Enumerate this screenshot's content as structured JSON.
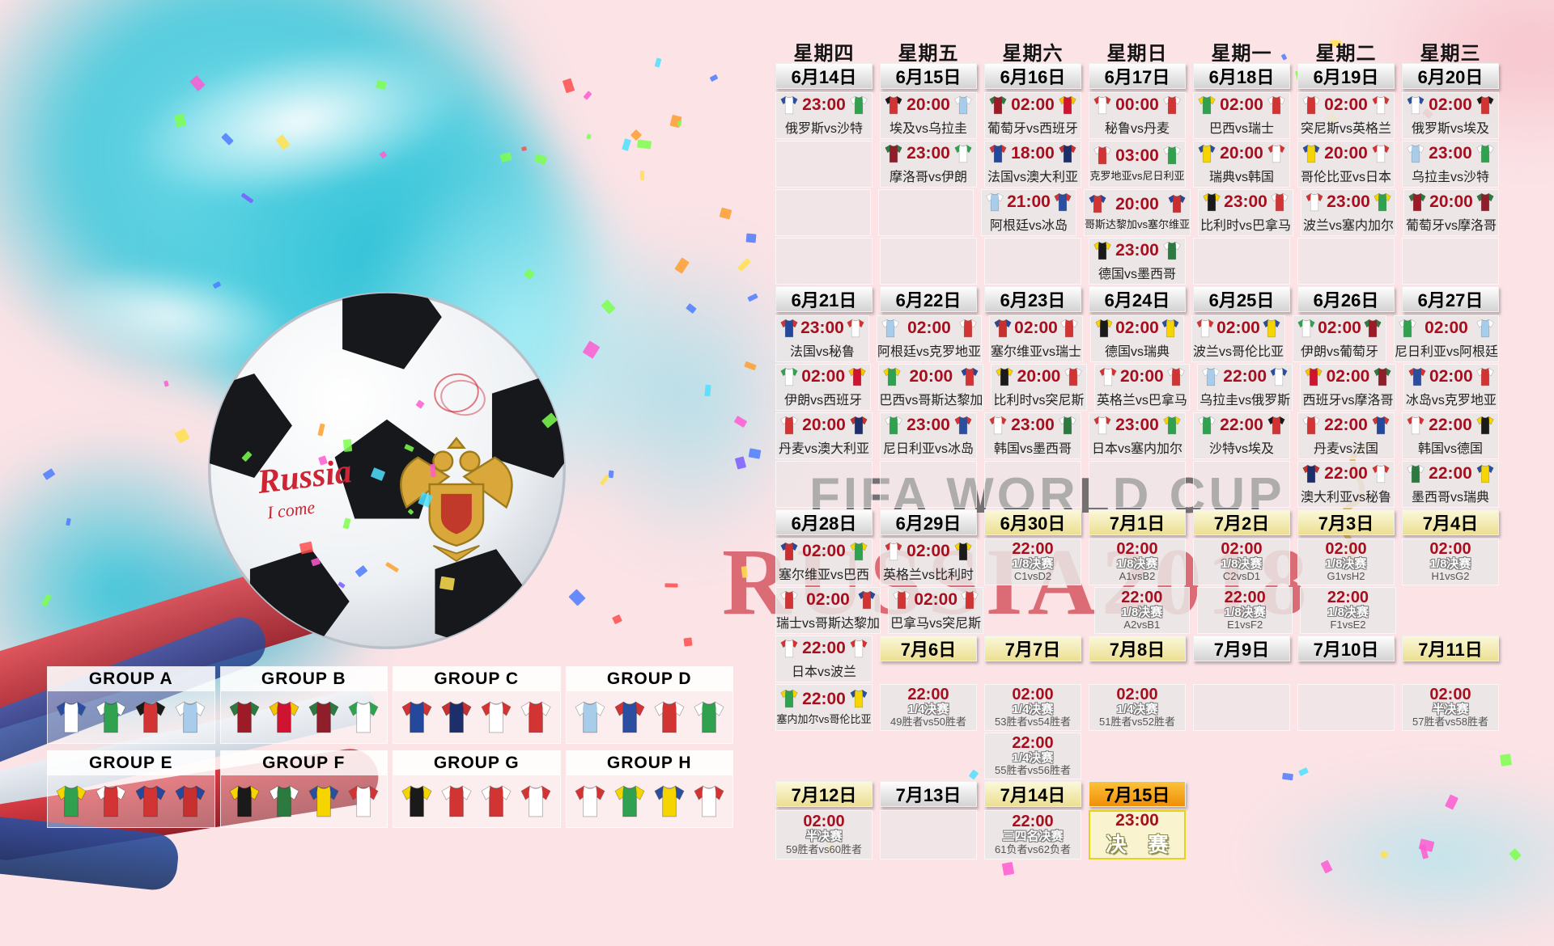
{
  "watermarks": {
    "fifa": "FIFA WORLD CUP",
    "russia": "RUSSIA2018"
  },
  "handwriting": {
    "line1": "Russia",
    "line2": "I come"
  },
  "icons": {
    "ball": "soccer-ball",
    "emblem": "russia-eagle-emblem",
    "jersey": "team-jersey-icon"
  },
  "colors": {
    "background_pink": "#fbe3e6",
    "splash_cyan": "#3cc6da",
    "time_red": "#a80f1e",
    "date_gray_top": "#fefefe",
    "date_yellow": "#ecdf92",
    "date_orange": "#ef8f06",
    "final_border": "#e6d318",
    "watermark_red": "#c61c2c"
  },
  "teams": {
    "俄罗斯": [
      "#ffffff",
      "#2a4fa0"
    ],
    "沙特": [
      "#2fa14f",
      "#ffffff"
    ],
    "埃及": [
      "#d23333",
      "#1a1a1a"
    ],
    "乌拉圭": [
      "#a8cdea",
      "#ffffff"
    ],
    "葡萄牙": [
      "#9c1b26",
      "#2c7a3f"
    ],
    "西班牙": [
      "#cf1330",
      "#f5c400"
    ],
    "秘鲁": [
      "#ffffff",
      "#d23333"
    ],
    "丹麦": [
      "#d23333",
      "#ffffff"
    ],
    "巴西": [
      "#2fa14f",
      "#f5d400"
    ],
    "瑞士": [
      "#d23333",
      "#ffffff"
    ],
    "突尼斯": [
      "#d23333",
      "#ffffff"
    ],
    "英格兰": [
      "#ffffff",
      "#d23333"
    ],
    "摩洛哥": [
      "#8e1f2a",
      "#2c7a3f"
    ],
    "伊朗": [
      "#ffffff",
      "#2fa14f"
    ],
    "法国": [
      "#24489c",
      "#d23333"
    ],
    "澳大利亚": [
      "#1d2f6b",
      "#c7302f"
    ],
    "克罗地亚": [
      "#d23333",
      "#ffffff"
    ],
    "尼日利亚": [
      "#2fa14f",
      "#ffffff"
    ],
    "瑞典": [
      "#f5d400",
      "#2a4fa0"
    ],
    "韩国": [
      "#ffffff",
      "#d23333"
    ],
    "哥伦比亚": [
      "#f5d400",
      "#2a4fa0"
    ],
    "日本": [
      "#ffffff",
      "#d23333"
    ],
    "阿根廷": [
      "#a8cdea",
      "#ffffff"
    ],
    "冰岛": [
      "#2a4fa0",
      "#d23333"
    ],
    "哥斯达黎加": [
      "#d23333",
      "#24489c"
    ],
    "塞尔维亚": [
      "#c7302f",
      "#24489c"
    ],
    "比利时": [
      "#1a1a1a",
      "#f5d400"
    ],
    "巴拿马": [
      "#d23333",
      "#ffffff"
    ],
    "波兰": [
      "#ffffff",
      "#d23333"
    ],
    "塞内加尔": [
      "#2fa14f",
      "#f5d400"
    ],
    "德国": [
      "#1a1a1a",
      "#f5d400"
    ],
    "墨西哥": [
      "#2c7a3f",
      "#ffffff"
    ]
  },
  "calendar": {
    "rows": [
      [
        {
          "type": "weekday",
          "label": "星期四"
        },
        {
          "type": "weekday",
          "label": "星期五"
        },
        {
          "type": "weekday",
          "label": "星期六"
        },
        {
          "type": "weekday",
          "label": "星期日"
        },
        {
          "type": "weekday",
          "label": "星期一"
        },
        {
          "type": "weekday",
          "label": "星期二"
        },
        {
          "type": "weekday",
          "label": "星期三"
        }
      ],
      [
        {
          "type": "date",
          "label": "6月14日",
          "style": "gray"
        },
        {
          "type": "date",
          "label": "6月15日",
          "style": "gray"
        },
        {
          "type": "date",
          "label": "6月16日",
          "style": "gray"
        },
        {
          "type": "date",
          "label": "6月17日",
          "style": "gray"
        },
        {
          "type": "date",
          "label": "6月18日",
          "style": "gray"
        },
        {
          "type": "date",
          "label": "6月19日",
          "style": "gray"
        },
        {
          "type": "date",
          "label": "6月20日",
          "style": "gray"
        }
      ],
      [
        {
          "type": "match",
          "time": "23:00",
          "home": "俄罗斯",
          "away": "沙特"
        },
        {
          "type": "match",
          "time": "20:00",
          "home": "埃及",
          "away": "乌拉圭"
        },
        {
          "type": "match",
          "time": "02:00",
          "home": "葡萄牙",
          "away": "西班牙"
        },
        {
          "type": "match",
          "time": "00:00",
          "home": "秘鲁",
          "away": "丹麦"
        },
        {
          "type": "match",
          "time": "02:00",
          "home": "巴西",
          "away": "瑞士"
        },
        {
          "type": "match",
          "time": "02:00",
          "home": "突尼斯",
          "away": "英格兰"
        },
        {
          "type": "match",
          "time": "02:00",
          "home": "俄罗斯",
          "away": "埃及"
        }
      ],
      [
        {
          "type": "empty"
        },
        {
          "type": "match",
          "time": "23:00",
          "home": "摩洛哥",
          "away": "伊朗"
        },
        {
          "type": "match",
          "time": "18:00",
          "home": "法国",
          "away": "澳大利亚"
        },
        {
          "type": "match",
          "time": "03:00",
          "home": "克罗地亚",
          "away": "尼日利亚"
        },
        {
          "type": "match",
          "time": "20:00",
          "home": "瑞典",
          "away": "韩国"
        },
        {
          "type": "match",
          "time": "20:00",
          "home": "哥伦比亚",
          "away": "日本"
        },
        {
          "type": "match",
          "time": "23:00",
          "home": "乌拉圭",
          "away": "沙特"
        }
      ],
      [
        {
          "type": "empty"
        },
        {
          "type": "empty"
        },
        {
          "type": "match",
          "time": "21:00",
          "home": "阿根廷",
          "away": "冰岛"
        },
        {
          "type": "match",
          "time": "20:00",
          "home": "哥斯达黎加",
          "away": "塞尔维亚"
        },
        {
          "type": "match",
          "time": "23:00",
          "home": "比利时",
          "away": "巴拿马"
        },
        {
          "type": "match",
          "time": "23:00",
          "home": "波兰",
          "away": "塞内加尔"
        },
        {
          "type": "match",
          "time": "20:00",
          "home": "葡萄牙",
          "away": "摩洛哥"
        }
      ],
      [
        {
          "type": "empty"
        },
        {
          "type": "empty"
        },
        {
          "type": "empty"
        },
        {
          "type": "match",
          "time": "23:00",
          "home": "德国",
          "away": "墨西哥"
        },
        {
          "type": "empty"
        },
        {
          "type": "empty"
        },
        {
          "type": "empty"
        }
      ],
      [
        {
          "type": "date",
          "label": "6月21日",
          "style": "gray"
        },
        {
          "type": "date",
          "label": "6月22日",
          "style": "gray"
        },
        {
          "type": "date",
          "label": "6月23日",
          "style": "gray"
        },
        {
          "type": "date",
          "label": "6月24日",
          "style": "gray"
        },
        {
          "type": "date",
          "label": "6月25日",
          "style": "gray"
        },
        {
          "type": "date",
          "label": "6月26日",
          "style": "gray"
        },
        {
          "type": "date",
          "label": "6月27日",
          "style": "gray"
        }
      ],
      [
        {
          "type": "match",
          "time": "23:00",
          "home": "法国",
          "away": "秘鲁"
        },
        {
          "type": "match",
          "time": "02:00",
          "home": "阿根廷",
          "away": "克罗地亚"
        },
        {
          "type": "match",
          "time": "02:00",
          "home": "塞尔维亚",
          "away": "瑞士"
        },
        {
          "type": "match",
          "time": "02:00",
          "home": "德国",
          "away": "瑞典"
        },
        {
          "type": "match",
          "time": "02:00",
          "home": "波兰",
          "away": "哥伦比亚"
        },
        {
          "type": "match",
          "time": "02:00",
          "home": "伊朗",
          "away": "葡萄牙"
        },
        {
          "type": "match",
          "time": "02:00",
          "home": "尼日利亚",
          "away": "阿根廷"
        }
      ],
      [
        {
          "type": "match",
          "time": "02:00",
          "home": "伊朗",
          "away": "西班牙"
        },
        {
          "type": "match",
          "time": "20:00",
          "home": "巴西",
          "away": "哥斯达黎加"
        },
        {
          "type": "match",
          "time": "20:00",
          "home": "比利时",
          "away": "突尼斯"
        },
        {
          "type": "match",
          "time": "20:00",
          "home": "英格兰",
          "away": "巴拿马"
        },
        {
          "type": "match",
          "time": "22:00",
          "home": "乌拉圭",
          "away": "俄罗斯"
        },
        {
          "type": "match",
          "time": "02:00",
          "home": "西班牙",
          "away": "摩洛哥"
        },
        {
          "type": "match",
          "time": "02:00",
          "home": "冰岛",
          "away": "克罗地亚"
        }
      ],
      [
        {
          "type": "match",
          "time": "20:00",
          "home": "丹麦",
          "away": "澳大利亚"
        },
        {
          "type": "match",
          "time": "23:00",
          "home": "尼日利亚",
          "away": "冰岛"
        },
        {
          "type": "match",
          "time": "23:00",
          "home": "韩国",
          "away": "墨西哥"
        },
        {
          "type": "match",
          "time": "23:00",
          "home": "日本",
          "away": "塞内加尔"
        },
        {
          "type": "match",
          "time": "22:00",
          "home": "沙特",
          "away": "埃及"
        },
        {
          "type": "match",
          "time": "22:00",
          "home": "丹麦",
          "away": "法国"
        },
        {
          "type": "match",
          "time": "22:00",
          "home": "韩国",
          "away": "德国"
        }
      ],
      [
        {
          "type": "empty"
        },
        {
          "type": "empty"
        },
        {
          "type": "empty"
        },
        {
          "type": "empty"
        },
        {
          "type": "empty"
        },
        {
          "type": "match",
          "time": "22:00",
          "home": "澳大利亚",
          "away": "秘鲁"
        },
        {
          "type": "match",
          "time": "22:00",
          "home": "墨西哥",
          "away": "瑞典"
        }
      ],
      [
        {
          "type": "date",
          "label": "6月28日",
          "style": "gray"
        },
        {
          "type": "date",
          "label": "6月29日",
          "style": "gray"
        },
        {
          "type": "date",
          "label": "6月30日",
          "style": "yellow"
        },
        {
          "type": "date",
          "label": "7月1日",
          "style": "yellow"
        },
        {
          "type": "date",
          "label": "7月2日",
          "style": "yellow"
        },
        {
          "type": "date",
          "label": "7月3日",
          "style": "yellow"
        },
        {
          "type": "date",
          "label": "7月4日",
          "style": "yellow"
        }
      ],
      [
        {
          "type": "match",
          "time": "02:00",
          "home": "塞尔维亚",
          "away": "巴西"
        },
        {
          "type": "match",
          "time": "02:00",
          "home": "英格兰",
          "away": "比利时"
        },
        {
          "type": "ko",
          "time": "22:00",
          "stage": "1/8决赛",
          "line": "C1vsD2"
        },
        {
          "type": "ko",
          "time": "02:00",
          "stage": "1/8决赛",
          "line": "A1vsB2"
        },
        {
          "type": "ko",
          "time": "02:00",
          "stage": "1/8决赛",
          "line": "C2vsD1"
        },
        {
          "type": "ko",
          "time": "02:00",
          "stage": "1/8决赛",
          "line": "G1vsH2"
        },
        {
          "type": "ko",
          "time": "02:00",
          "stage": "1/8决赛",
          "line": "H1vsG2"
        }
      ],
      [
        {
          "type": "match",
          "time": "02:00",
          "home": "瑞士",
          "away": "哥斯达黎加"
        },
        {
          "type": "match",
          "time": "02:00",
          "home": "巴拿马",
          "away": "突尼斯"
        },
        null,
        {
          "type": "ko",
          "time": "22:00",
          "stage": "1/8决赛",
          "line": "A2vsB1"
        },
        {
          "type": "ko",
          "time": "22:00",
          "stage": "1/8决赛",
          "line": "E1vsF2"
        },
        {
          "type": "ko",
          "time": "22:00",
          "stage": "1/8决赛",
          "line": "F1vsE2"
        },
        null
      ],
      [
        {
          "type": "match",
          "time": "22:00",
          "home": "日本",
          "away": "波兰"
        },
        {
          "type": "date",
          "label": "7月6日",
          "style": "yellow"
        },
        {
          "type": "date",
          "label": "7月7日",
          "style": "yellow"
        },
        {
          "type": "date",
          "label": "7月8日",
          "style": "yellow"
        },
        {
          "type": "date",
          "label": "7月9日",
          "style": "gray"
        },
        {
          "type": "date",
          "label": "7月10日",
          "style": "gray"
        },
        {
          "type": "date",
          "label": "7月11日",
          "style": "yellow"
        }
      ],
      [
        {
          "type": "match",
          "time": "22:00",
          "home": "塞内加尔",
          "away": "哥伦比亚"
        },
        {
          "type": "ko",
          "time": "22:00",
          "stage": "1/4决赛",
          "line": "49胜者vs50胜者"
        },
        {
          "type": "ko",
          "time": "02:00",
          "stage": "1/4决赛",
          "line": "53胜者vs54胜者"
        },
        {
          "type": "ko",
          "time": "02:00",
          "stage": "1/4决赛",
          "line": "51胜者vs52胜者"
        },
        {
          "type": "empty"
        },
        {
          "type": "empty"
        },
        {
          "type": "ko",
          "time": "02:00",
          "stage": "半决赛",
          "line": "57胜者vs58胜者"
        }
      ],
      [
        null,
        null,
        {
          "type": "ko",
          "time": "22:00",
          "stage": "1/4决赛",
          "line": "55胜者vs56胜者"
        },
        null,
        null,
        null,
        null
      ],
      [
        {
          "type": "date",
          "label": "7月12日",
          "style": "yellow"
        },
        {
          "type": "date",
          "label": "7月13日",
          "style": "gray"
        },
        {
          "type": "date",
          "label": "7月14日",
          "style": "yellow"
        },
        {
          "type": "date",
          "label": "7月15日",
          "style": "orange"
        },
        null,
        null,
        null
      ],
      [
        {
          "type": "ko",
          "time": "02:00",
          "stage": "半决赛",
          "line": "59胜者vs60胜者"
        },
        {
          "type": "empty"
        },
        {
          "type": "ko",
          "time": "22:00",
          "stage": "三四名决赛",
          "line": "61负者vs62负者"
        },
        {
          "type": "final",
          "time": "23:00",
          "label": "决 赛"
        },
        null,
        null,
        null
      ]
    ]
  },
  "groups": [
    {
      "name": "GROUP A",
      "teams": [
        "俄罗斯",
        "沙特",
        "埃及",
        "乌拉圭"
      ]
    },
    {
      "name": "GROUP B",
      "teams": [
        "葡萄牙",
        "西班牙",
        "摩洛哥",
        "伊朗"
      ]
    },
    {
      "name": "GROUP C",
      "teams": [
        "法国",
        "澳大利亚",
        "秘鲁",
        "丹麦"
      ]
    },
    {
      "name": "GROUP D",
      "teams": [
        "阿根廷",
        "冰岛",
        "克罗地亚",
        "尼日利亚"
      ]
    },
    {
      "name": "GROUP E",
      "teams": [
        "巴西",
        "瑞士",
        "哥斯达黎加",
        "塞尔维亚"
      ]
    },
    {
      "name": "GROUP F",
      "teams": [
        "德国",
        "墨西哥",
        "瑞典",
        "韩国"
      ]
    },
    {
      "name": "GROUP G",
      "teams": [
        "比利时",
        "巴拿马",
        "突尼斯",
        "英格兰"
      ]
    },
    {
      "name": "GROUP H",
      "teams": [
        "波兰",
        "塞内加尔",
        "哥伦比亚",
        "日本"
      ]
    }
  ]
}
